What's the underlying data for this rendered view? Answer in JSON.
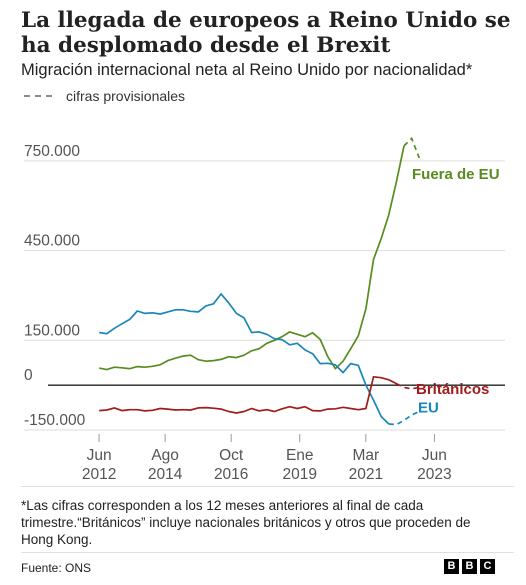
{
  "title": "La llegada de europeos a Reino Unido se ha desplomado desde el Brexit",
  "subtitle": "Migración internacional neta al Reino Unido por nacionalidad*",
  "legend": {
    "provisional_label": "cifras provisionales"
  },
  "footnote": "*Las cifras corresponden a los 12 meses anteriores al final de cada trimestre.“Británicos” incluye nacionales británicos y otros que proceden de Hong Kong.",
  "source": "Fuente: ONS",
  "logo": [
    "B",
    "B",
    "C"
  ],
  "colors": {
    "non_eu": "#588c1e",
    "eu": "#1a87b8",
    "british": "#a31c1c",
    "grid": "#dddddd",
    "zero": "#222222",
    "axis_text": "#555555"
  },
  "chart_data": {
    "type": "line",
    "ylim": [
      -150000,
      900000
    ],
    "yticks": [
      {
        "value": 750000,
        "label": "750.000"
      },
      {
        "value": 450000,
        "label": "450.000"
      },
      {
        "value": 150000,
        "label": "150.000"
      },
      {
        "value": 0,
        "label": "0"
      },
      {
        "value": -150000,
        "label": "-150.000"
      }
    ],
    "xticks": [
      {
        "t": 2012.417,
        "line1": "Jun",
        "line2": "2012"
      },
      {
        "t": 2014.583,
        "line1": "Ago",
        "line2": "2014"
      },
      {
        "t": 2016.75,
        "line1": "Oct",
        "line2": "2016"
      },
      {
        "t": 2019.0,
        "line1": "Ene",
        "line2": "2019"
      },
      {
        "t": 2021.167,
        "line1": "Mar",
        "line2": "2021"
      },
      {
        "t": 2023.417,
        "line1": "Jun",
        "line2": "2023"
      }
    ],
    "xlim": [
      2012.25,
      2023.6
    ],
    "series": [
      {
        "name": "Fuera de EU",
        "key": "non_eu",
        "points": [
          [
            2012.42,
            57000
          ],
          [
            2012.67,
            52000
          ],
          [
            2012.92,
            60000
          ],
          [
            2013.17,
            58000
          ],
          [
            2013.42,
            55000
          ],
          [
            2013.67,
            62000
          ],
          [
            2013.92,
            60000
          ],
          [
            2014.17,
            63000
          ],
          [
            2014.42,
            68000
          ],
          [
            2014.67,
            82000
          ],
          [
            2014.92,
            90000
          ],
          [
            2015.17,
            97000
          ],
          [
            2015.42,
            100000
          ],
          [
            2015.67,
            85000
          ],
          [
            2015.92,
            80000
          ],
          [
            2016.17,
            82000
          ],
          [
            2016.42,
            86000
          ],
          [
            2016.67,
            95000
          ],
          [
            2016.92,
            92000
          ],
          [
            2017.17,
            100000
          ],
          [
            2017.42,
            115000
          ],
          [
            2017.67,
            122000
          ],
          [
            2017.92,
            140000
          ],
          [
            2018.17,
            150000
          ],
          [
            2018.42,
            162000
          ],
          [
            2018.67,
            178000
          ],
          [
            2018.92,
            170000
          ],
          [
            2019.17,
            162000
          ],
          [
            2019.42,
            175000
          ],
          [
            2019.67,
            153000
          ],
          [
            2019.92,
            95000
          ],
          [
            2020.17,
            55000
          ],
          [
            2020.42,
            80000
          ],
          [
            2020.67,
            122000
          ],
          [
            2020.92,
            165000
          ],
          [
            2021.17,
            255000
          ],
          [
            2021.42,
            420000
          ],
          [
            2021.67,
            490000
          ],
          [
            2021.92,
            570000
          ],
          [
            2022.17,
            680000
          ],
          [
            2022.42,
            800000
          ]
        ],
        "provisional": [
          [
            2022.42,
            800000
          ],
          [
            2022.67,
            825000
          ],
          [
            2022.92,
            760000
          ]
        ]
      },
      {
        "name": "EU",
        "key": "eu",
        "points": [
          [
            2012.42,
            176000
          ],
          [
            2012.67,
            172000
          ],
          [
            2012.92,
            190000
          ],
          [
            2013.17,
            205000
          ],
          [
            2013.42,
            220000
          ],
          [
            2013.67,
            248000
          ],
          [
            2013.92,
            240000
          ],
          [
            2014.17,
            242000
          ],
          [
            2014.42,
            238000
          ],
          [
            2014.67,
            245000
          ],
          [
            2014.92,
            252000
          ],
          [
            2015.17,
            252000
          ],
          [
            2015.42,
            247000
          ],
          [
            2015.67,
            245000
          ],
          [
            2015.92,
            265000
          ],
          [
            2016.17,
            272000
          ],
          [
            2016.42,
            305000
          ],
          [
            2016.67,
            275000
          ],
          [
            2016.92,
            240000
          ],
          [
            2017.17,
            225000
          ],
          [
            2017.42,
            176000
          ],
          [
            2017.67,
            178000
          ],
          [
            2017.92,
            170000
          ],
          [
            2018.17,
            155000
          ],
          [
            2018.42,
            152000
          ],
          [
            2018.67,
            135000
          ],
          [
            2018.92,
            140000
          ],
          [
            2019.17,
            118000
          ],
          [
            2019.42,
            105000
          ],
          [
            2019.67,
            72000
          ],
          [
            2019.92,
            73000
          ],
          [
            2020.17,
            68000
          ],
          [
            2020.42,
            42000
          ],
          [
            2020.67,
            72000
          ],
          [
            2020.92,
            66000
          ],
          [
            2021.17,
            0
          ],
          [
            2021.42,
            -50000
          ],
          [
            2021.67,
            -105000
          ],
          [
            2021.92,
            -130000
          ]
        ],
        "provisional": [
          [
            2021.92,
            -130000
          ],
          [
            2022.17,
            -132000
          ],
          [
            2022.42,
            -118000
          ],
          [
            2022.67,
            -100000
          ],
          [
            2022.92,
            -88000
          ]
        ]
      },
      {
        "name": "Británicos",
        "key": "british",
        "points": [
          [
            2012.42,
            -85000
          ],
          [
            2012.67,
            -83000
          ],
          [
            2012.92,
            -76000
          ],
          [
            2013.17,
            -85000
          ],
          [
            2013.42,
            -82000
          ],
          [
            2013.67,
            -82000
          ],
          [
            2013.92,
            -86000
          ],
          [
            2014.17,
            -84000
          ],
          [
            2014.42,
            -78000
          ],
          [
            2014.67,
            -80000
          ],
          [
            2014.92,
            -83000
          ],
          [
            2015.17,
            -82000
          ],
          [
            2015.42,
            -83000
          ],
          [
            2015.67,
            -76000
          ],
          [
            2015.92,
            -75000
          ],
          [
            2016.17,
            -77000
          ],
          [
            2016.42,
            -80000
          ],
          [
            2016.67,
            -88000
          ],
          [
            2016.92,
            -93000
          ],
          [
            2017.17,
            -88000
          ],
          [
            2017.42,
            -78000
          ],
          [
            2017.67,
            -86000
          ],
          [
            2017.92,
            -82000
          ],
          [
            2018.17,
            -88000
          ],
          [
            2018.42,
            -79000
          ],
          [
            2018.67,
            -72000
          ],
          [
            2018.92,
            -78000
          ],
          [
            2019.17,
            -72000
          ],
          [
            2019.42,
            -85000
          ],
          [
            2019.67,
            -86000
          ],
          [
            2019.92,
            -80000
          ],
          [
            2020.17,
            -79000
          ],
          [
            2020.42,
            -74000
          ],
          [
            2020.67,
            -78000
          ],
          [
            2020.92,
            -82000
          ],
          [
            2021.17,
            -78000
          ],
          [
            2021.42,
            28000
          ],
          [
            2021.67,
            25000
          ],
          [
            2021.92,
            18000
          ],
          [
            2022.17,
            5000
          ]
        ],
        "provisional": [
          [
            2022.17,
            5000
          ],
          [
            2022.42,
            -8000
          ],
          [
            2022.67,
            -12000
          ],
          [
            2022.92,
            -8000
          ]
        ]
      }
    ],
    "series_labels": [
      {
        "key": "non_eu",
        "text": "Fuera de EU"
      },
      {
        "key": "british",
        "text": "Británicos"
      },
      {
        "key": "eu",
        "text": "EU"
      }
    ]
  }
}
